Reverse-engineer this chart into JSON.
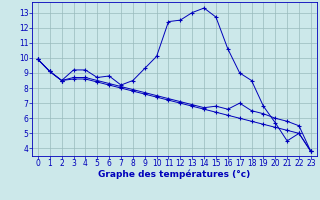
{
  "xlabel": "Graphe des températures (°c)",
  "background_color": "#cce8ea",
  "line_color": "#0000bb",
  "grid_color": "#99bbbd",
  "x_ticks": [
    0,
    1,
    2,
    3,
    4,
    5,
    6,
    7,
    8,
    9,
    10,
    11,
    12,
    13,
    14,
    15,
    16,
    17,
    18,
    19,
    20,
    21,
    22,
    23
  ],
  "y_ticks": [
    4,
    5,
    6,
    7,
    8,
    9,
    10,
    11,
    12,
    13
  ],
  "xlim": [
    -0.5,
    23.5
  ],
  "ylim": [
    3.5,
    13.7
  ],
  "curve1_y": [
    9.9,
    9.1,
    8.5,
    9.2,
    9.2,
    8.7,
    8.8,
    8.2,
    8.5,
    9.3,
    10.1,
    12.4,
    12.5,
    13.0,
    13.3,
    12.7,
    10.6,
    9.0,
    8.5,
    6.8,
    5.7,
    4.5,
    5.0,
    3.8
  ],
  "curve2_y": [
    9.9,
    9.1,
    8.5,
    8.6,
    8.6,
    8.4,
    8.2,
    8.0,
    7.8,
    7.6,
    7.4,
    7.2,
    7.0,
    6.8,
    6.6,
    6.4,
    6.2,
    6.0,
    5.8,
    5.6,
    5.4,
    5.2,
    5.0,
    3.8
  ],
  "curve3_y": [
    9.9,
    9.1,
    8.5,
    8.7,
    8.7,
    8.5,
    8.3,
    8.1,
    7.9,
    7.7,
    7.5,
    7.3,
    7.1,
    6.9,
    6.7,
    6.8,
    6.6,
    7.0,
    6.5,
    6.3,
    6.0,
    5.8,
    5.5,
    3.8
  ],
  "tick_fontsize": 5.5,
  "xlabel_fontsize": 6.5
}
